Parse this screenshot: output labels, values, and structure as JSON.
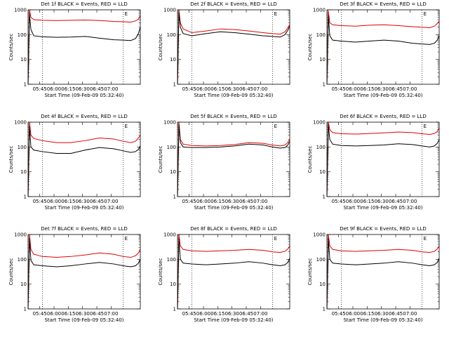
{
  "colors": {
    "events": "#000000",
    "lld": "#e00000",
    "axes": "#000000",
    "background": "#ffffff"
  },
  "chart_data": [
    {
      "type": "line",
      "title": "Det 1f BLACK = Events, RED = LLD",
      "marker": "E",
      "xlabel": "Start Time (09-Feb-09 05:32:40)",
      "ylabel": "Counts/sec",
      "x_ticks": [
        "05:45",
        "06:00",
        "06:15",
        "06:30",
        "06:45",
        "07:00"
      ],
      "y_ticks": [
        "1",
        "10",
        "100",
        "1000"
      ],
      "y_scale": "log",
      "ylim": [
        1,
        1000
      ],
      "xlim_minutes": [
        0,
        118
      ],
      "x_ticks_minutes": [
        12.3,
        27.3,
        42.3,
        57.3,
        72.3,
        87.3
      ],
      "dotted_lines_minutes": [
        15,
        100
      ],
      "x_minutes": [
        0,
        1.5,
        3,
        6,
        15,
        30,
        45,
        60,
        75,
        90,
        100,
        108,
        113,
        116,
        118
      ],
      "series": [
        {
          "name": "BLACK = Events",
          "values": [
            1,
            700,
            160,
            90,
            82,
            78,
            80,
            85,
            72,
            62,
            60,
            58,
            70,
            110,
            200
          ]
        },
        {
          "name": "RED = LLD",
          "values": [
            1,
            1000,
            500,
            400,
            380,
            370,
            380,
            390,
            370,
            340,
            330,
            320,
            360,
            420,
            600
          ]
        }
      ]
    },
    {
      "type": "line",
      "title": "Det 2f BLACK = Events, RED = LLD",
      "marker": "E",
      "xlabel": "Start Time (09-Feb-09 05:32:40)",
      "ylabel": "Counts/sec",
      "x_ticks": [
        "05:45",
        "06:00",
        "06:15",
        "06:30",
        "06:45",
        "07:00"
      ],
      "y_ticks": [
        "1",
        "10",
        "100",
        "1000"
      ],
      "y_scale": "log",
      "ylim": [
        1,
        1000
      ],
      "xlim_minutes": [
        0,
        118
      ],
      "x_ticks_minutes": [
        12.3,
        27.3,
        42.3,
        57.3,
        72.3,
        87.3
      ],
      "dotted_lines_minutes": [
        15,
        100
      ],
      "x_minutes": [
        0,
        1.5,
        3,
        6,
        15,
        30,
        45,
        60,
        75,
        90,
        100,
        108,
        113,
        116,
        118
      ],
      "series": [
        {
          "name": "BLACK = Events",
          "values": [
            1,
            800,
            200,
            110,
            90,
            110,
            130,
            120,
            105,
            90,
            85,
            80,
            100,
            150,
            220
          ]
        },
        {
          "name": "RED = LLD",
          "values": [
            1,
            1000,
            300,
            170,
            120,
            140,
            170,
            160,
            140,
            120,
            110,
            105,
            130,
            190,
            260
          ]
        }
      ]
    },
    {
      "type": "line",
      "title": "Det 3f BLACK = Events, RED = LLD",
      "marker": "E",
      "xlabel": "Start Time (09-Feb-09 05:32:40)",
      "ylabel": "Counts/sec",
      "x_ticks": [
        "05:45",
        "06:00",
        "06:15",
        "06:30",
        "06:45",
        "07:00"
      ],
      "y_ticks": [
        "1",
        "10",
        "100",
        "1000"
      ],
      "y_scale": "log",
      "ylim": [
        1,
        1000
      ],
      "xlim_minutes": [
        0,
        118
      ],
      "x_ticks_minutes": [
        12.3,
        27.3,
        42.3,
        57.3,
        72.3,
        87.3
      ],
      "dotted_lines_minutes": [
        15,
        100
      ],
      "x_minutes": [
        0,
        1.5,
        3,
        6,
        15,
        30,
        45,
        60,
        75,
        90,
        100,
        108,
        113,
        116,
        118
      ],
      "series": [
        {
          "name": "BLACK = Events",
          "values": [
            1,
            600,
            90,
            60,
            55,
            50,
            55,
            60,
            55,
            45,
            42,
            40,
            45,
            60,
            90
          ]
        },
        {
          "name": "RED = LLD",
          "values": [
            1,
            900,
            300,
            250,
            230,
            220,
            240,
            250,
            230,
            210,
            200,
            190,
            220,
            280,
            350
          ]
        }
      ]
    },
    {
      "type": "line",
      "title": "Det 4f BLACK = Events, RED = LLD",
      "marker": "E",
      "xlabel": "Start Time (09-Feb-09 05:32:40)",
      "ylabel": "Counts/sec",
      "x_ticks": [
        "05:45",
        "06:00",
        "06:15",
        "06:30",
        "06:45",
        "07:00"
      ],
      "y_ticks": [
        "1",
        "10",
        "100",
        "1000"
      ],
      "y_scale": "log",
      "ylim": [
        1,
        1000
      ],
      "xlim_minutes": [
        0,
        118
      ],
      "x_ticks_minutes": [
        12.3,
        27.3,
        42.3,
        57.3,
        72.3,
        87.3
      ],
      "dotted_lines_minutes": [
        15,
        100
      ],
      "x_minutes": [
        0,
        1.5,
        3,
        6,
        15,
        30,
        45,
        60,
        75,
        90,
        100,
        108,
        113,
        116,
        118
      ],
      "series": [
        {
          "name": "BLACK = Events",
          "values": [
            1,
            700,
            100,
            75,
            65,
            55,
            55,
            75,
            95,
            85,
            70,
            60,
            65,
            80,
            110
          ]
        },
        {
          "name": "RED = LLD",
          "values": [
            1,
            1000,
            300,
            220,
            180,
            150,
            150,
            180,
            230,
            210,
            170,
            150,
            170,
            230,
            300
          ]
        }
      ]
    },
    {
      "type": "line",
      "title": "Det 5f BLACK = Events, RED = LLD",
      "marker": "E",
      "xlabel": "Start Time (09-Feb-09 05:32:40)",
      "ylabel": "Counts/sec",
      "x_ticks": [
        "05:45",
        "06:00",
        "06:15",
        "06:30",
        "06:45",
        "07:00"
      ],
      "y_ticks": [
        "1",
        "10",
        "100",
        "1000"
      ],
      "y_scale": "log",
      "ylim": [
        1,
        1000
      ],
      "xlim_minutes": [
        0,
        118
      ],
      "x_ticks_minutes": [
        12.3,
        27.3,
        42.3,
        57.3,
        72.3,
        87.3
      ],
      "dotted_lines_minutes": [
        15,
        100
      ],
      "x_minutes": [
        0,
        1.5,
        3,
        6,
        15,
        30,
        45,
        60,
        75,
        90,
        100,
        108,
        113,
        116,
        118
      ],
      "series": [
        {
          "name": "BLACK = Events",
          "values": [
            1,
            800,
            150,
            100,
            95,
            95,
            100,
            110,
            130,
            120,
            100,
            90,
            95,
            120,
            170
          ]
        },
        {
          "name": "RED = LLD",
          "values": [
            1,
            1000,
            200,
            130,
            115,
            110,
            115,
            125,
            150,
            140,
            120,
            110,
            120,
            150,
            210
          ]
        }
      ]
    },
    {
      "type": "line",
      "title": "Det 6f BLACK = Events, RED = LLD",
      "marker": "E",
      "xlabel": "Start Time (09-Feb-09 05:32:40)",
      "ylabel": "Counts/sec",
      "x_ticks": [
        "05:45",
        "06:00",
        "06:15",
        "06:30",
        "06:45",
        "07:00"
      ],
      "y_ticks": [
        "1",
        "10",
        "100",
        "1000"
      ],
      "y_scale": "log",
      "ylim": [
        1,
        1000
      ],
      "xlim_minutes": [
        0,
        118
      ],
      "x_ticks_minutes": [
        12.3,
        27.3,
        42.3,
        57.3,
        72.3,
        87.3
      ],
      "dotted_lines_minutes": [
        15,
        100
      ],
      "x_minutes": [
        0,
        1.5,
        3,
        6,
        15,
        30,
        45,
        60,
        75,
        90,
        100,
        108,
        113,
        116,
        118
      ],
      "series": [
        {
          "name": "BLACK = Events",
          "values": [
            1,
            800,
            200,
            130,
            115,
            110,
            115,
            120,
            135,
            125,
            110,
            100,
            110,
            140,
            200
          ]
        },
        {
          "name": "RED = LLD",
          "values": [
            1,
            1000,
            500,
            380,
            340,
            330,
            350,
            370,
            400,
            380,
            340,
            320,
            350,
            420,
            600
          ]
        }
      ]
    },
    {
      "type": "line",
      "title": "Det 7f BLACK = Events, RED = LLD",
      "marker": "E",
      "xlabel": "Start Time (09-Feb-09 05:32:40)",
      "ylabel": "Counts/sec",
      "x_ticks": [
        "05:45",
        "06:00",
        "06:15",
        "06:30",
        "06:45",
        "07:00"
      ],
      "y_ticks": [
        "1",
        "10",
        "100",
        "1000"
      ],
      "y_scale": "log",
      "ylim": [
        1,
        1000
      ],
      "xlim_minutes": [
        0,
        118
      ],
      "x_ticks_minutes": [
        12.3,
        27.3,
        42.3,
        57.3,
        72.3,
        87.3
      ],
      "dotted_lines_minutes": [
        15,
        100
      ],
      "x_minutes": [
        0,
        1.5,
        3,
        6,
        15,
        30,
        45,
        60,
        75,
        90,
        100,
        108,
        113,
        116,
        118
      ],
      "series": [
        {
          "name": "BLACK = Events",
          "values": [
            1,
            700,
            90,
            60,
            55,
            50,
            55,
            65,
            75,
            65,
            55,
            50,
            55,
            70,
            100
          ]
        },
        {
          "name": "RED = LLD",
          "values": [
            1,
            1000,
            250,
            160,
            130,
            120,
            130,
            150,
            180,
            160,
            130,
            120,
            140,
            180,
            260
          ]
        }
      ]
    },
    {
      "type": "line",
      "title": "Det 8f BLACK = Events, RED = LLD",
      "marker": "E",
      "xlabel": "Start Time (09-Feb-09 05:32:40)",
      "ylabel": "Counts/sec",
      "x_ticks": [
        "05:45",
        "06:00",
        "06:15",
        "06:30",
        "06:45",
        "07:00"
      ],
      "y_ticks": [
        "1",
        "10",
        "100",
        "1000"
      ],
      "y_scale": "log",
      "ylim": [
        1,
        1000
      ],
      "xlim_minutes": [
        0,
        118
      ],
      "x_ticks_minutes": [
        12.3,
        27.3,
        42.3,
        57.3,
        72.3,
        87.3
      ],
      "dotted_lines_minutes": [
        15,
        100
      ],
      "x_minutes": [
        0,
        1.5,
        3,
        6,
        15,
        30,
        45,
        60,
        75,
        90,
        100,
        108,
        113,
        116,
        118
      ],
      "series": [
        {
          "name": "BLACK = Events",
          "values": [
            1,
            700,
            100,
            70,
            65,
            60,
            65,
            70,
            80,
            70,
            60,
            55,
            60,
            75,
            110
          ]
        },
        {
          "name": "RED = LLD",
          "values": [
            1,
            1000,
            350,
            250,
            220,
            210,
            220,
            230,
            250,
            230,
            200,
            190,
            210,
            260,
            350
          ]
        }
      ]
    },
    {
      "type": "line",
      "title": "Det 9f BLACK = Events, RED = LLD",
      "marker": "E",
      "xlabel": "Start Time (09-Feb-09 05:32:40)",
      "ylabel": "Counts/sec",
      "x_ticks": [
        "05:45",
        "06:00",
        "06:15",
        "06:30",
        "06:45",
        "07:00"
      ],
      "y_ticks": [
        "1",
        "10",
        "100",
        "1000"
      ],
      "y_scale": "log",
      "ylim": [
        1,
        1000
      ],
      "xlim_minutes": [
        0,
        118
      ],
      "x_ticks_minutes": [
        12.3,
        27.3,
        42.3,
        57.3,
        72.3,
        87.3
      ],
      "dotted_lines_minutes": [
        15,
        100
      ],
      "x_minutes": [
        0,
        1.5,
        3,
        6,
        15,
        30,
        45,
        60,
        75,
        90,
        100,
        108,
        113,
        116,
        118
      ],
      "series": [
        {
          "name": "BLACK = Events",
          "values": [
            1,
            700,
            100,
            70,
            65,
            60,
            65,
            70,
            80,
            70,
            60,
            55,
            60,
            75,
            110
          ]
        },
        {
          "name": "RED = LLD",
          "values": [
            1,
            1000,
            350,
            250,
            220,
            210,
            220,
            230,
            250,
            230,
            200,
            190,
            210,
            260,
            350
          ]
        }
      ]
    }
  ]
}
